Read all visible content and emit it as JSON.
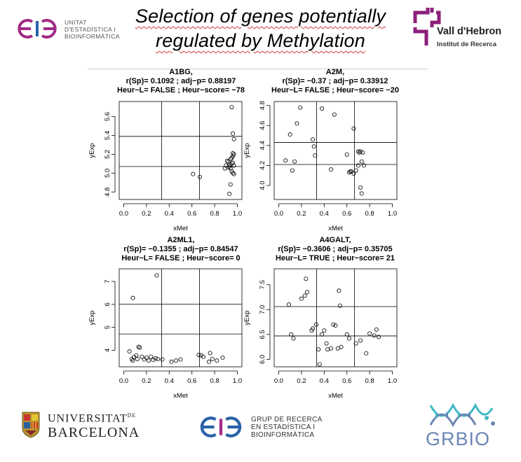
{
  "slide_title_line1": "Selection of genes potentially",
  "slide_title_line2": "regulated by Methylation",
  "logos": {
    "ueb_line1": "UNITAT",
    "ueb_line2": "D'ESTADÍSTICA I",
    "ueb_line3": "BIOINFORMÀTICA",
    "vh_name": "Vall d'Hebron",
    "vh_sub": "Institut de Recerca",
    "ub_line1": "UNIVERSITAT",
    "ub_de": "DE",
    "ub_line2": "BARCELONA",
    "grup_line1": "GRUP DE RECERCA",
    "grup_line2": "EN ESTADÍSTICA I",
    "grup_line3": "BIOINFORMÀTICA",
    "grbio": "GRBIO",
    "colors": {
      "ueb_magenta": "#a12a86",
      "vh_purple": "#8d1f7a",
      "ueb_blue": "#2a63a8",
      "grbio_teal": "#3fb8c4",
      "grbio_blue": "#6b86b5"
    }
  },
  "chart_data": [
    {
      "type": "scatter",
      "title": [
        "A1BG,",
        "r(Sp)= 0.1092 ; adj−p= 0.88197",
        "Heur−L= FALSE ; Heur−score= −78"
      ],
      "xlabel": "xMet",
      "ylabel": "yExp",
      "xlim": [
        -0.04,
        1.04
      ],
      "ylim": [
        4.72,
        5.76
      ],
      "xticks": [
        0.0,
        0.2,
        0.4,
        0.6,
        0.8,
        1.0
      ],
      "xtick_labels": [
        "0.0",
        "0.2",
        "0.4",
        "0.6",
        "0.8",
        "1.0"
      ],
      "yticks": [
        4.8,
        5.0,
        5.2,
        5.4,
        5.6
      ],
      "ytick_labels": [
        "4.8",
        "5.0",
        "5.2",
        "5.4",
        "5.6"
      ],
      "vlines": [
        0.333,
        0.667
      ],
      "hlines": [
        5.07,
        5.39
      ],
      "x": [
        0.61,
        0.67,
        0.89,
        0.9,
        0.91,
        0.92,
        0.93,
        0.93,
        0.94,
        0.94,
        0.95,
        0.95,
        0.95,
        0.96,
        0.96,
        0.96,
        0.97,
        0.97,
        0.97,
        0.95,
        0.96,
        0.97,
        0.94,
        0.93,
        0.96,
        0.92
      ],
      "y": [
        4.99,
        4.96,
        5.05,
        5.08,
        5.13,
        5.12,
        5.09,
        5.07,
        5.05,
        5.15,
        5.02,
        5.1,
        5.16,
        5.18,
        5.21,
        5.0,
        5.08,
        5.2,
        4.99,
        5.7,
        5.42,
        5.36,
        4.88,
        4.78,
        5.11,
        5.06
      ]
    },
    {
      "type": "scatter",
      "title": [
        "A2M,",
        "r(Sp)= −0.37 ; adj−p= 0.33912",
        "Heur−L= FALSE ; Heur−score= −20"
      ],
      "xlabel": "xMet",
      "ylabel": "yExp",
      "xlim": [
        -0.04,
        1.04
      ],
      "ylim": [
        3.86,
        4.84
      ],
      "xticks": [
        0.0,
        0.2,
        0.4,
        0.6,
        0.8,
        1.0
      ],
      "xtick_labels": [
        "0.0",
        "0.2",
        "0.4",
        "0.6",
        "0.8",
        "1.0"
      ],
      "yticks": [
        4.0,
        4.2,
        4.4,
        4.6,
        4.8
      ],
      "ytick_labels": [
        "4.0",
        "4.2",
        "4.4",
        "4.6",
        "4.8"
      ],
      "vlines": [
        0.333,
        0.667
      ],
      "hlines": [
        4.21,
        4.43
      ],
      "x": [
        0.06,
        0.1,
        0.12,
        0.14,
        0.16,
        0.19,
        0.3,
        0.31,
        0.32,
        0.38,
        0.46,
        0.49,
        0.6,
        0.62,
        0.63,
        0.64,
        0.66,
        0.66,
        0.7,
        0.71,
        0.72,
        0.73,
        0.74,
        0.75,
        0.72,
        0.68,
        0.7,
        0.73
      ],
      "y": [
        4.25,
        4.51,
        4.15,
        4.24,
        4.62,
        4.78,
        4.46,
        4.39,
        4.3,
        4.77,
        4.16,
        4.71,
        4.31,
        4.13,
        4.14,
        4.14,
        4.57,
        4.12,
        4.34,
        4.33,
        4.34,
        4.24,
        4.33,
        4.2,
        3.98,
        4.15,
        4.2,
        3.92
      ]
    },
    {
      "type": "scatter",
      "title": [
        "A2ML1,",
        "r(Sp)= −0.1355 ; adj−p= 0.84547",
        "Heur−L= FALSE ; Heur−score= 0"
      ],
      "xlabel": "xMet",
      "ylabel": "yExp",
      "xlim": [
        -0.04,
        1.04
      ],
      "ylim": [
        3.28,
        7.55
      ],
      "xticks": [
        0.0,
        0.2,
        0.4,
        0.6,
        0.8,
        1.0
      ],
      "xtick_labels": [
        "0.0",
        "0.2",
        "0.4",
        "0.6",
        "0.8",
        "1.0"
      ],
      "yticks": [
        4,
        5,
        6,
        7
      ],
      "ytick_labels": [
        "4",
        "5",
        "6",
        "7"
      ],
      "vlines": [
        0.333,
        0.667
      ],
      "hlines": [
        4.71,
        6.01
      ],
      "x": [
        0.05,
        0.07,
        0.08,
        0.09,
        0.11,
        0.12,
        0.13,
        0.16,
        0.18,
        0.2,
        0.22,
        0.24,
        0.26,
        0.28,
        0.3,
        0.34,
        0.42,
        0.46,
        0.5,
        0.66,
        0.68,
        0.7,
        0.75,
        0.76,
        0.78,
        0.82,
        0.87,
        0.08,
        0.29,
        0.14
      ],
      "y": [
        3.95,
        3.62,
        3.55,
        3.7,
        3.78,
        3.62,
        4.15,
        3.72,
        3.6,
        3.68,
        3.55,
        3.72,
        3.58,
        3.65,
        3.62,
        3.6,
        3.5,
        3.55,
        3.6,
        3.8,
        3.78,
        3.72,
        3.5,
        3.88,
        3.62,
        3.55,
        3.68,
        6.28,
        7.26,
        4.12
      ]
    },
    {
      "type": "scatter",
      "title": [
        "A4GALT,",
        "r(Sp)= −0.3606 ; adj−p= 0.35705",
        "Heur−L= TRUE ; Heur−score= 21"
      ],
      "xlabel": "xMet",
      "ylabel": "yExp",
      "xlim": [
        -0.04,
        1.04
      ],
      "ylim": [
        5.85,
        7.82
      ],
      "xticks": [
        0.0,
        0.2,
        0.4,
        0.6,
        0.8,
        1.0
      ],
      "xtick_labels": [
        "0.0",
        "0.2",
        "0.4",
        "0.6",
        "0.8",
        "1.0"
      ],
      "yticks": [
        6.0,
        6.5,
        7.0,
        7.5
      ],
      "ytick_labels": [
        "6.0",
        "6.5",
        "7.0",
        "7.5"
      ],
      "vlines": [
        0.333,
        0.667
      ],
      "hlines": [
        6.47,
        7.06
      ],
      "x": [
        0.09,
        0.11,
        0.13,
        0.2,
        0.23,
        0.25,
        0.29,
        0.3,
        0.33,
        0.35,
        0.38,
        0.4,
        0.42,
        0.43,
        0.46,
        0.48,
        0.5,
        0.52,
        0.53,
        0.54,
        0.55,
        0.6,
        0.62,
        0.68,
        0.72,
        0.77,
        0.8,
        0.84,
        0.86,
        0.88,
        0.24,
        0.36
      ],
      "y": [
        7.1,
        6.5,
        6.42,
        7.22,
        7.28,
        7.35,
        6.58,
        6.62,
        6.7,
        6.2,
        6.5,
        6.58,
        6.32,
        6.2,
        6.22,
        6.7,
        6.68,
        6.22,
        7.38,
        7.08,
        6.25,
        6.5,
        6.42,
        6.32,
        6.38,
        6.12,
        6.52,
        6.48,
        6.6,
        6.45,
        7.62,
        5.9
      ]
    }
  ]
}
